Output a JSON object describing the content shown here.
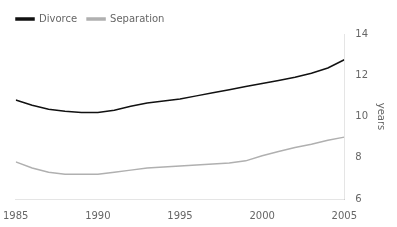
{
  "chart_data": {
    "type": "line",
    "x": [
      1985,
      1986,
      1987,
      1988,
      1989,
      1990,
      1991,
      1992,
      1993,
      1994,
      1995,
      1996,
      1997,
      1998,
      1999,
      2000,
      2001,
      2002,
      2003,
      2004,
      2005
    ],
    "series": [
      {
        "name": "Divorce",
        "color": "#111111",
        "values": [
          10.8,
          10.55,
          10.35,
          10.25,
          10.2,
          10.2,
          10.3,
          10.5,
          10.65,
          10.75,
          10.85,
          11.0,
          11.15,
          11.3,
          11.45,
          11.6,
          11.75,
          11.9,
          12.1,
          12.35,
          12.75
        ]
      },
      {
        "name": "Separation",
        "color": "#b0b0b0",
        "values": [
          7.8,
          7.5,
          7.3,
          7.2,
          7.2,
          7.2,
          7.3,
          7.4,
          7.5,
          7.55,
          7.6,
          7.65,
          7.7,
          7.75,
          7.85,
          8.1,
          8.3,
          8.5,
          8.65,
          8.85,
          9.0
        ]
      }
    ],
    "xlim": [
      1985,
      2005
    ],
    "ylim": [
      6,
      14
    ],
    "xticks": [
      1985,
      1990,
      1995,
      2000,
      2005
    ],
    "yticks": [
      6,
      8,
      10,
      12,
      14
    ],
    "ylabel": "years",
    "grid": false,
    "legend": "upper left"
  }
}
